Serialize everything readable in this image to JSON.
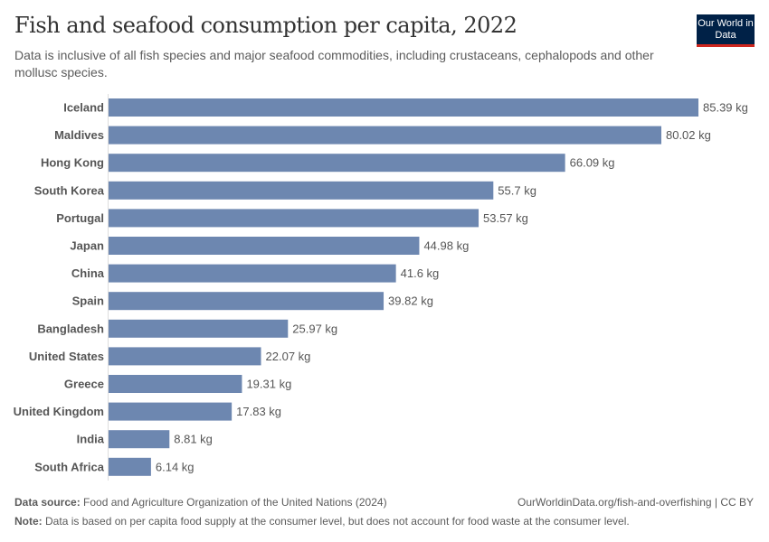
{
  "header": {
    "title": "Fish and seafood consumption per capita, 2022",
    "subtitle": "Data is inclusive of all fish species and major seafood commodities, including crustaceans, cephalopods and other mollusc species.",
    "logo": "Our World in Data"
  },
  "footer": {
    "source_label": "Data source:",
    "source_text": "Food and Agriculture Organization of the United Nations (2024)",
    "url": "OurWorldinData.org/fish-and-overfishing | CC BY",
    "note_label": "Note:",
    "note_text": "Data is based on per capita food supply at the consumer level, but does not account for food waste at the consumer level."
  },
  "colors": {
    "bar": "#6d87b0",
    "axis": "#dddddd",
    "text": "#5b5b5b",
    "brand": "#002147",
    "brand_accent": "#ce261e"
  },
  "chart_data": {
    "type": "bar",
    "orientation": "horizontal",
    "title": "Fish and seafood consumption per capita, 2022",
    "unit": "kg",
    "categories": [
      "Iceland",
      "Maldives",
      "Hong Kong",
      "South Korea",
      "Portugal",
      "Japan",
      "China",
      "Spain",
      "Bangladesh",
      "United States",
      "Greece",
      "United Kingdom",
      "India",
      "South Africa"
    ],
    "values": [
      85.39,
      80.02,
      66.09,
      55.7,
      53.57,
      44.98,
      41.6,
      39.82,
      25.97,
      22.07,
      19.31,
      17.83,
      8.81,
      6.14
    ],
    "labels": [
      "85.39 kg",
      "80.02 kg",
      "66.09 kg",
      "55.7 kg",
      "53.57 kg",
      "44.98 kg",
      "41.6 kg",
      "39.82 kg",
      "25.97 kg",
      "22.07 kg",
      "19.31 kg",
      "17.83 kg",
      "8.81 kg",
      "6.14 kg"
    ],
    "xlim": [
      0,
      85.39
    ],
    "grid": false,
    "legend": "none"
  }
}
